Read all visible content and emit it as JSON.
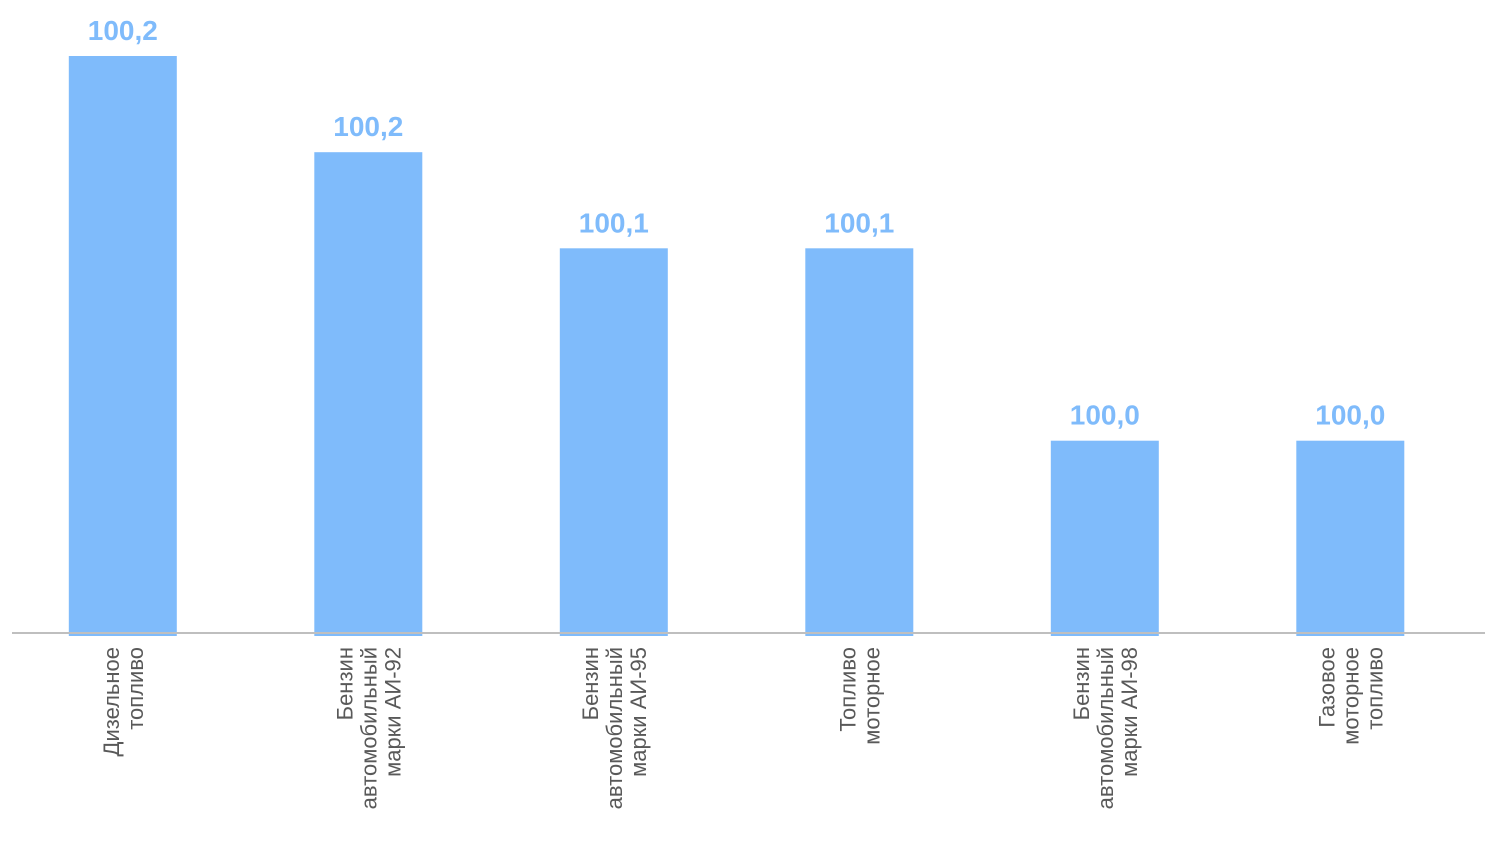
{
  "colors": {
    "bar": "#7fbbfb",
    "value_label": "#7fbbfb",
    "axis": "#bfbfbf",
    "category_label": "#595959"
  },
  "chart_data": {
    "type": "bar",
    "categories": [
      [
        "Дизельное",
        "топливо"
      ],
      [
        "Бензин",
        "автомобильный",
        "марки АИ-92"
      ],
      [
        "Бензин",
        "автомобильный",
        "марки АИ-95"
      ],
      [
        "Топливо",
        "моторное"
      ],
      [
        "Бензин",
        "автомобильный",
        "марки АИ-98"
      ],
      [
        "Газовое",
        "моторное",
        "топливо"
      ]
    ],
    "values": [
      100.2,
      100.15,
      100.1,
      100.1,
      100.0,
      100.0
    ],
    "value_labels": [
      "100,2",
      "100,2",
      "100,1",
      "100,1",
      "100,0",
      "100,0"
    ],
    "ylim": [
      99.9,
      100.2
    ],
    "grid": false,
    "legend": "none",
    "title": "",
    "xlabel": "",
    "ylabel": ""
  }
}
